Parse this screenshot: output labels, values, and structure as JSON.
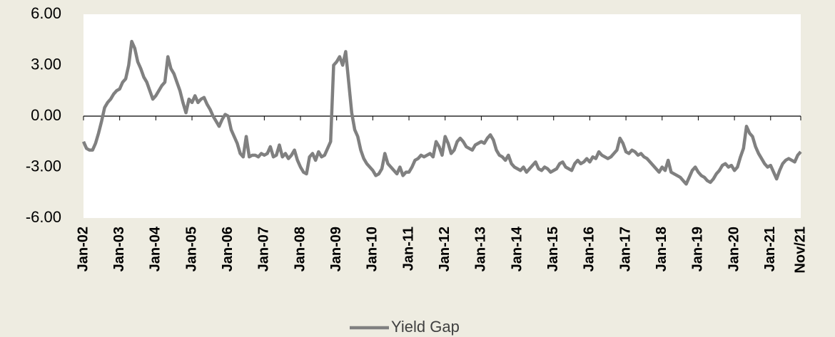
{
  "chart_data": {
    "type": "line",
    "categories": [
      "Jan-02",
      null,
      null,
      null,
      null,
      null,
      null,
      null,
      null,
      null,
      null,
      null,
      "Jan-03",
      null,
      null,
      null,
      null,
      null,
      null,
      null,
      null,
      null,
      null,
      null,
      "Jan-04",
      null,
      null,
      null,
      null,
      null,
      null,
      null,
      null,
      null,
      null,
      null,
      "Jan-05",
      null,
      null,
      null,
      null,
      null,
      null,
      null,
      null,
      null,
      null,
      null,
      "Jan-06",
      null,
      null,
      null,
      null,
      null,
      null,
      null,
      null,
      null,
      null,
      null,
      "Jan-07",
      null,
      null,
      null,
      null,
      null,
      null,
      null,
      null,
      null,
      null,
      null,
      "Jan-08",
      null,
      null,
      null,
      null,
      null,
      null,
      null,
      null,
      null,
      null,
      null,
      "Jan-09",
      null,
      null,
      null,
      null,
      null,
      null,
      null,
      null,
      null,
      null,
      null,
      "Jan-10",
      null,
      null,
      null,
      null,
      null,
      null,
      null,
      null,
      null,
      null,
      null,
      "Jan-11",
      null,
      null,
      null,
      null,
      null,
      null,
      null,
      null,
      null,
      null,
      null,
      "Jan-12",
      null,
      null,
      null,
      null,
      null,
      null,
      null,
      null,
      null,
      null,
      null,
      "Jan-13",
      null,
      null,
      null,
      null,
      null,
      null,
      null,
      null,
      null,
      null,
      null,
      "Jan-14",
      null,
      null,
      null,
      null,
      null,
      null,
      null,
      null,
      null,
      null,
      null,
      "Jan-15",
      null,
      null,
      null,
      null,
      null,
      null,
      null,
      null,
      null,
      null,
      null,
      "Jan-16",
      null,
      null,
      null,
      null,
      null,
      null,
      null,
      null,
      null,
      null,
      null,
      "Jan-17",
      null,
      null,
      null,
      null,
      null,
      null,
      null,
      null,
      null,
      null,
      null,
      "Jan-18",
      null,
      null,
      null,
      null,
      null,
      null,
      null,
      null,
      null,
      null,
      null,
      "Jan-19",
      null,
      null,
      null,
      null,
      null,
      null,
      null,
      null,
      null,
      null,
      null,
      "Jan-20",
      null,
      null,
      null,
      null,
      null,
      null,
      null,
      null,
      null,
      null,
      null,
      "Jan-21",
      null,
      null,
      null,
      null,
      null,
      null,
      null,
      null,
      null,
      "Nov/21"
    ],
    "series": [
      {
        "name": "Yield Gap",
        "color": "#808080",
        "values": [
          -1.5,
          -1.9,
          -2.0,
          -2.0,
          -1.6,
          -1.0,
          -0.3,
          0.5,
          0.8,
          1.0,
          1.3,
          1.5,
          1.6,
          2.0,
          2.2,
          3.0,
          4.4,
          4.0,
          3.2,
          2.8,
          2.3,
          2.0,
          1.5,
          1.0,
          1.2,
          1.5,
          1.8,
          2.0,
          3.5,
          2.8,
          2.5,
          2.0,
          1.5,
          0.8,
          0.2,
          1.0,
          0.8,
          1.2,
          0.8,
          1.0,
          1.1,
          0.7,
          0.4,
          0.0,
          -0.3,
          -0.6,
          -0.2,
          0.1,
          0.0,
          -0.8,
          -1.2,
          -1.6,
          -2.2,
          -2.4,
          -1.2,
          -2.4,
          -2.3,
          -2.3,
          -2.4,
          -2.2,
          -2.3,
          -2.2,
          -1.8,
          -2.4,
          -2.3,
          -1.7,
          -2.4,
          -2.2,
          -2.5,
          -2.3,
          -2.0,
          -2.6,
          -3.0,
          -3.3,
          -3.4,
          -2.4,
          -2.2,
          -2.6,
          -2.1,
          -2.4,
          -2.3,
          -1.9,
          -1.5,
          3.0,
          3.2,
          3.5,
          3.0,
          3.8,
          2.0,
          0.2,
          -0.8,
          -1.2,
          -2.0,
          -2.5,
          -2.8,
          -3.0,
          -3.2,
          -3.5,
          -3.4,
          -3.1,
          -2.2,
          -2.8,
          -3.0,
          -3.2,
          -3.4,
          -3.0,
          -3.5,
          -3.3,
          -3.3,
          -3.0,
          -2.6,
          -2.5,
          -2.3,
          -2.4,
          -2.3,
          -2.2,
          -2.4,
          -1.5,
          -1.8,
          -2.3,
          -1.2,
          -1.6,
          -2.2,
          -2.0,
          -1.5,
          -1.3,
          -1.5,
          -1.8,
          -1.9,
          -2.0,
          -1.7,
          -1.6,
          -1.5,
          -1.6,
          -1.3,
          -1.1,
          -1.4,
          -2.0,
          -2.3,
          -2.4,
          -2.6,
          -2.3,
          -2.8,
          -3.0,
          -3.1,
          -3.2,
          -3.0,
          -3.3,
          -3.1,
          -2.9,
          -2.7,
          -3.1,
          -3.2,
          -3.0,
          -3.1,
          -3.3,
          -3.2,
          -3.1,
          -2.8,
          -2.7,
          -3.0,
          -3.1,
          -3.2,
          -2.8,
          -2.6,
          -2.8,
          -2.7,
          -2.5,
          -2.7,
          -2.4,
          -2.5,
          -2.1,
          -2.3,
          -2.4,
          -2.5,
          -2.4,
          -2.2,
          -2.0,
          -1.3,
          -1.6,
          -2.1,
          -2.2,
          -2.0,
          -2.1,
          -2.3,
          -2.2,
          -2.4,
          -2.5,
          -2.7,
          -2.9,
          -3.1,
          -3.3,
          -3.0,
          -3.2,
          -2.6,
          -3.3,
          -3.4,
          -3.5,
          -3.6,
          -3.8,
          -4.0,
          -3.6,
          -3.2,
          -3.0,
          -3.3,
          -3.5,
          -3.6,
          -3.8,
          -3.9,
          -3.7,
          -3.4,
          -3.2,
          -2.9,
          -2.8,
          -3.0,
          -2.9,
          -3.2,
          -3.0,
          -2.4,
          -1.9,
          -0.6,
          -1.0,
          -1.2,
          -1.8,
          -2.2,
          -2.5,
          -2.8,
          -3.0,
          -2.9,
          -3.3,
          -3.7,
          -3.2,
          -2.8,
          -2.6,
          -2.5,
          -2.6,
          -2.7,
          -2.3,
          -2.1
        ]
      }
    ],
    "ylim": [
      -6,
      6
    ],
    "yticks": [
      {
        "value": 6,
        "label": "6.00"
      },
      {
        "value": 3,
        "label": "3.00"
      },
      {
        "value": 0,
        "label": "0.00"
      },
      {
        "value": -3,
        "label": "-3.00"
      },
      {
        "value": -6,
        "label": "-6.00"
      }
    ],
    "legend": "bottom"
  }
}
